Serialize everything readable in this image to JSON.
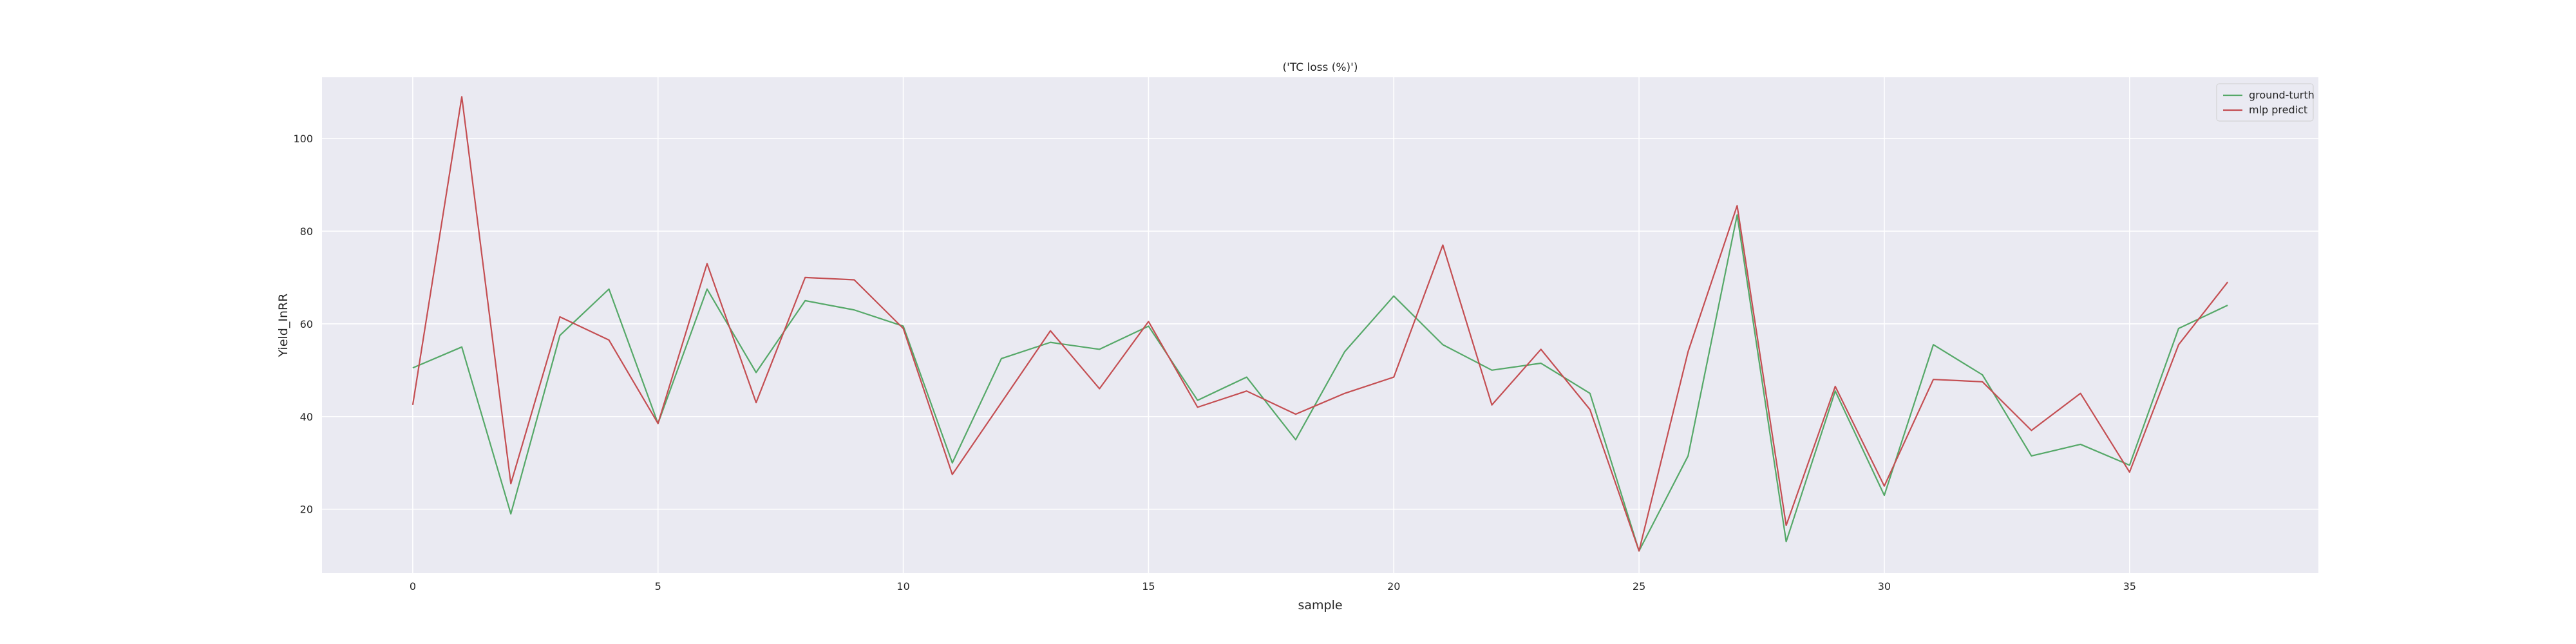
{
  "chart_data": {
    "type": "line",
    "title": "('TC loss (%)')",
    "xlabel": "sample",
    "ylabel": "Yield_InRR",
    "xlim": [
      -1.85,
      38.85
    ],
    "ylim": [
      6.2,
      113.2
    ],
    "x_ticks": [
      0,
      5,
      10,
      15,
      20,
      25,
      30,
      35
    ],
    "y_ticks": [
      20,
      40,
      60,
      80,
      100
    ],
    "grid": true,
    "legend_position": "top-right",
    "x": [
      0,
      1,
      2,
      3,
      4,
      5,
      6,
      7,
      8,
      9,
      10,
      11,
      12,
      13,
      14,
      15,
      16,
      17,
      18,
      19,
      20,
      21,
      22,
      23,
      24,
      25,
      26,
      27,
      28,
      29,
      30,
      31,
      32,
      33,
      34,
      35,
      36,
      37
    ],
    "series": [
      {
        "name": "ground-turth",
        "color": "#55a868",
        "values": [
          50.5,
          55,
          19,
          57.5,
          67.5,
          38.5,
          67.5,
          49.5,
          65,
          63,
          59.5,
          30,
          52.5,
          56,
          54.5,
          59.5,
          43.5,
          48.5,
          35,
          54,
          66,
          55.5,
          50,
          51.5,
          45,
          11,
          31.5,
          83.5,
          13,
          45.5,
          23,
          55.5,
          49,
          31.5,
          34,
          29.5,
          59,
          64
        ]
      },
      {
        "name": "mlp predict",
        "color": "#c44e52",
        "values": [
          42.5,
          109,
          25.5,
          61.5,
          56.5,
          38.5,
          73,
          43,
          70,
          69.5,
          59,
          27.5,
          43,
          58.5,
          46,
          60.5,
          42,
          45.5,
          40.5,
          45,
          48.5,
          77,
          42.5,
          54.5,
          41.5,
          11,
          54,
          85.5,
          16.5,
          46.5,
          25,
          48,
          47.5,
          37,
          45,
          28,
          55.5,
          69
        ]
      }
    ]
  }
}
